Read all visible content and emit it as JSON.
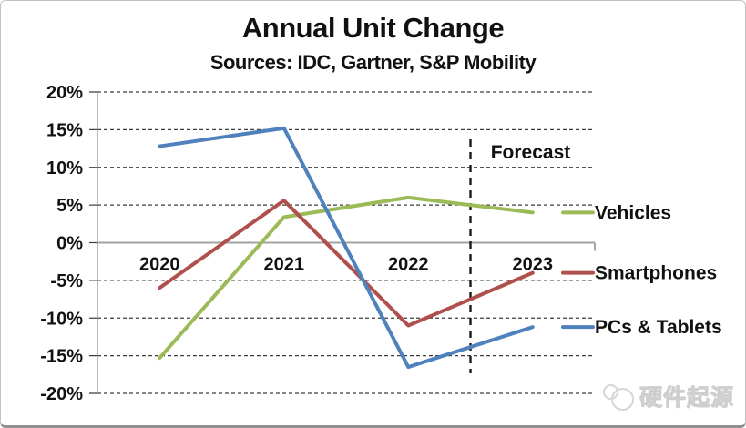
{
  "header": {
    "title": "Annual Unit Change",
    "subtitle": "Sources: IDC, Gartner, S&P Mobility"
  },
  "chart_data": {
    "type": "line",
    "title": "Annual Unit Change",
    "subtitle": "Sources: IDC, Gartner, S&P Mobility",
    "x": [
      "2020",
      "2021",
      "2022",
      "2023"
    ],
    "series": [
      {
        "name": "Vehicles",
        "color": "#9BBB59",
        "values": [
          -15.3,
          3.4,
          6.0,
          4.0
        ]
      },
      {
        "name": "Smartphones",
        "color": "#B0504D",
        "values": [
          -6.0,
          5.6,
          -11.0,
          -4.0
        ]
      },
      {
        "name": "PCs & Tablets",
        "color": "#4F81BD",
        "values": [
          12.8,
          15.2,
          -16.5,
          -11.2
        ]
      }
    ],
    "ylim": [
      -20,
      20
    ],
    "ytick_step": 5,
    "yticks": [
      "20%",
      "15%",
      "10%",
      "5%",
      "0%",
      "-5%",
      "-10%",
      "-15%",
      "-20%"
    ],
    "grid": "horizontal-dashed",
    "zero_line": "solid",
    "legend_position": "right-at-series-end",
    "annotations": [
      {
        "type": "vline",
        "style": "dashed",
        "between": [
          "2022",
          "2023"
        ],
        "label": "Forecast"
      }
    ]
  },
  "colors": {
    "grid": "#3c3c3c",
    "zero_line": "#a3a3a3",
    "axis": "#8a8a8a",
    "text": "#111111",
    "forecast_line": "#1a1a1a"
  },
  "watermark": {
    "text": "硬件起源"
  }
}
